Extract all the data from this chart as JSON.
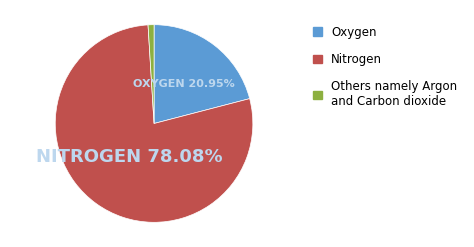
{
  "slices": [
    20.95,
    78.08,
    0.97
  ],
  "labels": [
    "Oxygen",
    "Nitrogen",
    "Others namely Argon\nand Carbon dioxide"
  ],
  "colors": [
    "#5B9BD5",
    "#C0504D",
    "#8DB040"
  ],
  "label_color": "#BDD7EE",
  "background_color": "#FFFFFF",
  "startangle": 90,
  "legend_fontsize": 8.5,
  "oxy_label": "OXYGEN 20.95%",
  "nit_label": "NITROGEN 78.08%",
  "oxy_fontsize": 8,
  "nit_fontsize": 13
}
